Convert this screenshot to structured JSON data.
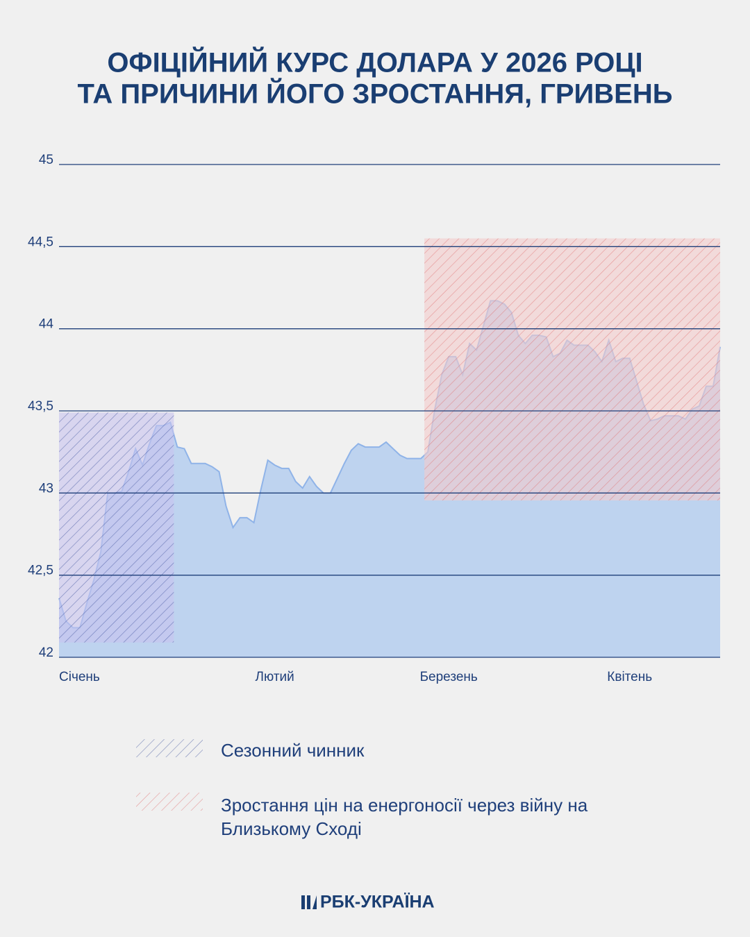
{
  "chart_data": {
    "type": "area",
    "title": [
      "ОФІЦІЙНИЙ КУРС ДОЛАРА У 2026 РОЦІ",
      "ТА ПРИЧИНИ ЙОГО ЗРОСТАННЯ, ГРИВЕНЬ"
    ],
    "categories": [
      "Січень",
      null,
      null,
      null,
      null,
      null,
      null,
      null,
      null,
      null,
      null,
      null,
      null,
      null,
      null,
      null,
      null,
      null,
      null,
      null,
      null,
      null,
      null,
      null,
      null,
      null,
      null,
      null,
      null,
      null,
      null,
      "Лютий",
      null,
      null,
      null,
      null,
      null,
      null,
      null,
      null,
      null,
      null,
      null,
      null,
      null,
      null,
      null,
      null,
      null,
      null,
      null,
      null,
      null,
      null,
      null,
      null,
      "Березень",
      null,
      null,
      null,
      null,
      null,
      null,
      null,
      null,
      null,
      null,
      null,
      null,
      null,
      null,
      null,
      null,
      null,
      null,
      null,
      null,
      null,
      null,
      null,
      null,
      null,
      "Квітень",
      null,
      null,
      null,
      null,
      null,
      null,
      null,
      null,
      null,
      null,
      null,
      null,
      null
    ],
    "series": [
      {
        "color": "#8fb3e8",
        "fill": "#bed3ef",
        "values": [
          42.36,
          42.22,
          42.18,
          42.18,
          42.33,
          42.47,
          42.64,
          43.0,
          43.0,
          43.01,
          43.13,
          43.27,
          43.17,
          43.3,
          43.41,
          43.41,
          43.43,
          43.28,
          43.27,
          43.18,
          43.18,
          43.18,
          43.16,
          43.13,
          42.92,
          42.79,
          42.85,
          42.85,
          42.82,
          43.02,
          43.2,
          43.17,
          43.15,
          43.15,
          43.07,
          43.03,
          43.1,
          43.04,
          43.0,
          43.0,
          43.09,
          43.18,
          43.26,
          43.3,
          43.28,
          43.28,
          43.28,
          43.31,
          43.27,
          43.23,
          43.21,
          43.21,
          43.21,
          43.25,
          43.51,
          43.72,
          43.83,
          43.83,
          43.72,
          43.91,
          43.87,
          44.02,
          44.17,
          44.17,
          44.15,
          44.1,
          43.96,
          43.91,
          43.96,
          43.96,
          43.95,
          43.83,
          43.85,
          43.93,
          43.9,
          43.9,
          43.9,
          43.86,
          43.8,
          43.93,
          43.8,
          43.82,
          43.82,
          43.68,
          43.54,
          43.44,
          43.45,
          43.47,
          43.47,
          43.47,
          43.45,
          43.51,
          43.53,
          43.65,
          43.65,
          43.89
        ]
      }
    ],
    "bands": [
      {
        "name": "Сезонний чинник",
        "color": "#3a4f9a",
        "fill": "#c8c3ee",
        "xrange": [
          0,
          16.5
        ],
        "yrange": [
          42.09,
          43.49
        ]
      },
      {
        "name": "Зростання цін на енергоносії через війну на Близькому Сході",
        "color": "#e06a6a",
        "fill": "#f4cccc",
        "xrange": [
          52.5,
          95
        ],
        "yrange": [
          42.955,
          44.55
        ]
      }
    ],
    "ylim": [
      42,
      45
    ],
    "yticks": [
      42,
      {
        "value": 42.5,
        "label": "42,5"
      },
      43,
      {
        "value": 43.5,
        "label": "43,5"
      },
      44,
      {
        "value": 44.5,
        "label": "44,5"
      },
      45
    ],
    "grid": true,
    "source": "РБК-УКРАЇНА"
  }
}
